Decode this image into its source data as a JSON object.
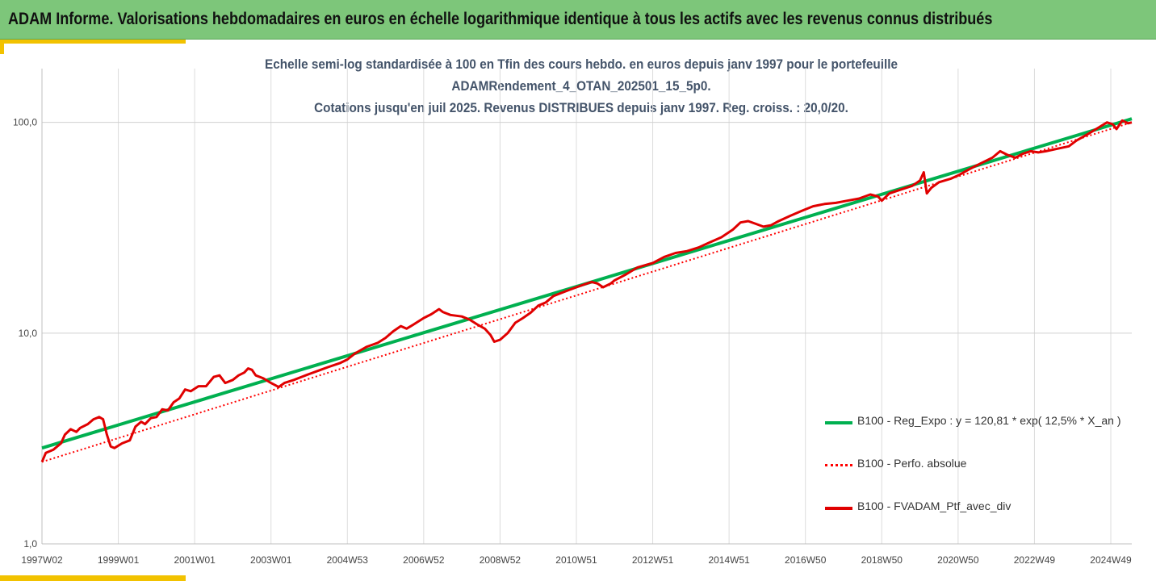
{
  "header": {
    "title": "ADAM Informe. Valorisations hebdomadaires en euros en échelle logarithmique identique à tous les actifs avec les revenus connus distribués"
  },
  "chart_data": {
    "type": "line",
    "title_lines": [
      "Echelle semi-log standardisée à 100 en Tfin des cours hebdo.  en euros depuis janv 1997 pour le portefeuille",
      "ADAMRendement_4_OTAN_202501_15_5p0.",
      "Cotations  jusqu'en juil 2025. Revenus DISTRIBUES depuis janv 1997. Reg. croiss. : 20,0/20."
    ],
    "xlabel": "",
    "ylabel": "",
    "y_scale": "log",
    "ylim": [
      1,
      180
    ],
    "y_ticks": [
      1,
      10,
      100
    ],
    "y_tick_labels": [
      "1,0",
      "10,0",
      "100,0"
    ],
    "x_range": [
      1997.0,
      2025.55
    ],
    "x_ticks": [
      {
        "x": 1997.0,
        "label": "1997W02"
      },
      {
        "x": 1999.0,
        "label": "1999W01"
      },
      {
        "x": 2001.0,
        "label": "2001W01"
      },
      {
        "x": 2003.0,
        "label": "2003W01"
      },
      {
        "x": 2005.0,
        "label": "2004W53"
      },
      {
        "x": 2007.0,
        "label": "2006W52"
      },
      {
        "x": 2009.0,
        "label": "2008W52"
      },
      {
        "x": 2011.0,
        "label": "2010W51"
      },
      {
        "x": 2013.0,
        "label": "2012W51"
      },
      {
        "x": 2015.0,
        "label": "2014W51"
      },
      {
        "x": 2017.0,
        "label": "2016W50"
      },
      {
        "x": 2019.0,
        "label": "2018W50"
      },
      {
        "x": 2021.0,
        "label": "2020W50"
      },
      {
        "x": 2023.0,
        "label": "2022W49"
      },
      {
        "x": 2025.0,
        "label": "2024W49"
      }
    ],
    "grid": "vertical",
    "legend_position": "right",
    "series": [
      {
        "name": "B100 - Reg_Expo : y = 120,81 * exp( 12,5% *  X_an )",
        "color": "#00b050",
        "style": "solid",
        "points": [
          [
            1997.0,
            2.85
          ],
          [
            2025.55,
            104.0
          ]
        ]
      },
      {
        "name": "B100 - Perfo. absolue",
        "color": "#ff0000",
        "style": "dotted",
        "points": [
          [
            1997.0,
            2.45
          ],
          [
            2025.55,
            100.0
          ]
        ]
      },
      {
        "name": "B100 - FVADAM_Ptf_avec_div",
        "color": "#e00000",
        "style": "solid",
        "points": [
          [
            1997.0,
            2.45
          ],
          [
            1997.1,
            2.7
          ],
          [
            1997.3,
            2.8
          ],
          [
            1997.5,
            3.0
          ],
          [
            1997.6,
            3.3
          ],
          [
            1997.75,
            3.5
          ],
          [
            1997.9,
            3.4
          ],
          [
            1998.0,
            3.55
          ],
          [
            1998.2,
            3.7
          ],
          [
            1998.35,
            3.9
          ],
          [
            1998.5,
            4.0
          ],
          [
            1998.6,
            3.9
          ],
          [
            1998.7,
            3.3
          ],
          [
            1998.8,
            2.9
          ],
          [
            1998.9,
            2.85
          ],
          [
            1999.1,
            3.0
          ],
          [
            1999.3,
            3.1
          ],
          [
            1999.45,
            3.6
          ],
          [
            1999.6,
            3.8
          ],
          [
            1999.7,
            3.7
          ],
          [
            1999.85,
            3.95
          ],
          [
            2000.0,
            4.0
          ],
          [
            2000.15,
            4.35
          ],
          [
            2000.3,
            4.3
          ],
          [
            2000.45,
            4.7
          ],
          [
            2000.6,
            4.9
          ],
          [
            2000.75,
            5.4
          ],
          [
            2000.9,
            5.3
          ],
          [
            2001.1,
            5.6
          ],
          [
            2001.3,
            5.6
          ],
          [
            2001.5,
            6.2
          ],
          [
            2001.65,
            6.3
          ],
          [
            2001.8,
            5.8
          ],
          [
            2002.0,
            6.0
          ],
          [
            2002.15,
            6.3
          ],
          [
            2002.3,
            6.5
          ],
          [
            2002.4,
            6.8
          ],
          [
            2002.5,
            6.7
          ],
          [
            2002.6,
            6.3
          ],
          [
            2002.8,
            6.1
          ],
          [
            2003.0,
            5.8
          ],
          [
            2003.2,
            5.55
          ],
          [
            2003.35,
            5.8
          ],
          [
            2003.6,
            6.0
          ],
          [
            2003.8,
            6.2
          ],
          [
            2004.0,
            6.4
          ],
          [
            2004.3,
            6.7
          ],
          [
            2004.5,
            6.9
          ],
          [
            2004.8,
            7.2
          ],
          [
            2005.0,
            7.5
          ],
          [
            2005.2,
            8.0
          ],
          [
            2005.5,
            8.6
          ],
          [
            2005.8,
            9.0
          ],
          [
            2006.0,
            9.5
          ],
          [
            2006.2,
            10.2
          ],
          [
            2006.4,
            10.8
          ],
          [
            2006.55,
            10.5
          ],
          [
            2006.7,
            10.9
          ],
          [
            2007.0,
            11.8
          ],
          [
            2007.2,
            12.3
          ],
          [
            2007.4,
            13.0
          ],
          [
            2007.5,
            12.6
          ],
          [
            2007.7,
            12.2
          ],
          [
            2008.0,
            12.0
          ],
          [
            2008.2,
            11.6
          ],
          [
            2008.4,
            11.0
          ],
          [
            2008.6,
            10.5
          ],
          [
            2008.75,
            9.8
          ],
          [
            2008.85,
            9.1
          ],
          [
            2009.0,
            9.3
          ],
          [
            2009.2,
            10.0
          ],
          [
            2009.4,
            11.2
          ],
          [
            2009.6,
            11.8
          ],
          [
            2009.8,
            12.5
          ],
          [
            2010.0,
            13.5
          ],
          [
            2010.2,
            14.0
          ],
          [
            2010.4,
            15.0
          ],
          [
            2010.6,
            15.5
          ],
          [
            2010.8,
            16.0
          ],
          [
            2011.0,
            16.5
          ],
          [
            2011.2,
            17.0
          ],
          [
            2011.4,
            17.5
          ],
          [
            2011.55,
            17.2
          ],
          [
            2011.7,
            16.5
          ],
          [
            2011.9,
            17.2
          ],
          [
            2012.0,
            17.8
          ],
          [
            2012.3,
            19.0
          ],
          [
            2012.6,
            20.5
          ],
          [
            2012.8,
            21.0
          ],
          [
            2013.0,
            21.5
          ],
          [
            2013.3,
            23.0
          ],
          [
            2013.6,
            24.0
          ],
          [
            2013.9,
            24.5
          ],
          [
            2014.2,
            25.5
          ],
          [
            2014.5,
            27.0
          ],
          [
            2014.8,
            28.5
          ],
          [
            2015.1,
            31.0
          ],
          [
            2015.3,
            33.5
          ],
          [
            2015.5,
            34.0
          ],
          [
            2015.7,
            33.0
          ],
          [
            2015.9,
            32.0
          ],
          [
            2016.1,
            32.5
          ],
          [
            2016.3,
            34.0
          ],
          [
            2016.6,
            36.0
          ],
          [
            2016.9,
            38.0
          ],
          [
            2017.2,
            40.0
          ],
          [
            2017.5,
            41.0
          ],
          [
            2017.8,
            41.5
          ],
          [
            2018.1,
            42.5
          ],
          [
            2018.4,
            43.5
          ],
          [
            2018.7,
            45.5
          ],
          [
            2018.9,
            44.5
          ],
          [
            2019.0,
            42.5
          ],
          [
            2019.2,
            46.0
          ],
          [
            2019.5,
            48.0
          ],
          [
            2019.8,
            50.0
          ],
          [
            2020.0,
            53.0
          ],
          [
            2020.1,
            58.0
          ],
          [
            2020.18,
            46.0
          ],
          [
            2020.3,
            49.0
          ],
          [
            2020.5,
            52.0
          ],
          [
            2020.8,
            54.0
          ],
          [
            2021.0,
            56.0
          ],
          [
            2021.3,
            60.0
          ],
          [
            2021.6,
            64.0
          ],
          [
            2021.9,
            68.0
          ],
          [
            2022.1,
            73.0
          ],
          [
            2022.3,
            70.0
          ],
          [
            2022.5,
            68.0
          ],
          [
            2022.7,
            71.0
          ],
          [
            2022.9,
            73.0
          ],
          [
            2023.1,
            72.0
          ],
          [
            2023.3,
            73.0
          ],
          [
            2023.6,
            75.0
          ],
          [
            2023.9,
            77.0
          ],
          [
            2024.1,
            82.0
          ],
          [
            2024.4,
            88.0
          ],
          [
            2024.7,
            95.0
          ],
          [
            2024.9,
            100.0
          ],
          [
            2025.05,
            98.0
          ],
          [
            2025.15,
            93.0
          ],
          [
            2025.3,
            102.0
          ],
          [
            2025.45,
            99.0
          ],
          [
            2025.55,
            100.0
          ]
        ]
      }
    ]
  }
}
